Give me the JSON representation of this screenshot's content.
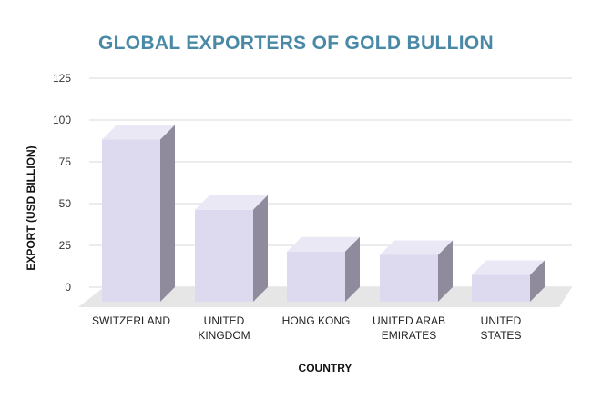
{
  "chart_data": {
    "type": "bar",
    "title": "GLOBAL EXPORTERS OF GOLD BULLION",
    "xlabel": "COUNTRY",
    "ylabel": "EXPORT (USD BILLION)",
    "categories": [
      [
        "SWITZERLAND"
      ],
      [
        "UNITED",
        "KINGDOM"
      ],
      [
        "HONG KONG"
      ],
      [
        "UNITED ARAB",
        "EMIRATES"
      ],
      [
        "UNITED",
        "STATES"
      ]
    ],
    "values": [
      97,
      55,
      30,
      28,
      16
    ],
    "yticks": [
      0,
      25,
      50,
      75,
      100,
      125
    ],
    "ylim": [
      0,
      125
    ],
    "grid": true,
    "style": "3d-columns"
  },
  "colors": {
    "title": "#4a89a6",
    "bar_front": "#ddd9ee",
    "bar_top": "#ebe8f6",
    "bar_side": "#8f8b9c",
    "floor": "#e6e6e6",
    "grid": "#d9d9d9"
  }
}
